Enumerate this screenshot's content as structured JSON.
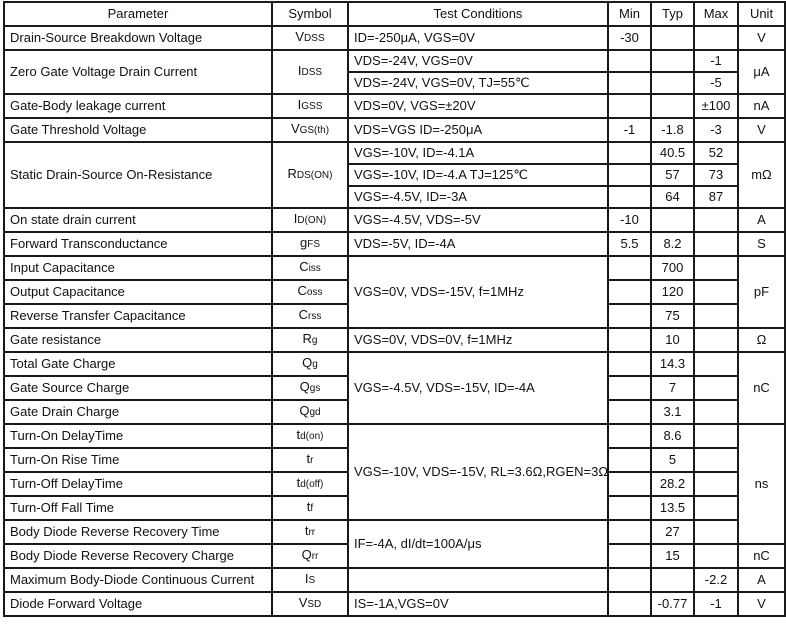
{
  "headers": [
    "Parameter",
    "Symbol",
    "Test Conditions",
    "Min",
    "Typ",
    "Max",
    "Unit"
  ],
  "rows": [
    {
      "param": "Drain-Source Breakdown Voltage",
      "symbol": {
        "base": "V",
        "sub": "DSS"
      },
      "cond": "ID=-250μA, VGS=0V",
      "min": "-30",
      "typ": "",
      "max": "",
      "unit": "V"
    },
    {
      "param": "Zero Gate Voltage Drain Current",
      "param_span": 2,
      "symbol": {
        "base": "I",
        "sub": "DSS"
      },
      "cond": "VDS=-24V, VGS=0V",
      "min": "",
      "typ": "",
      "max": "-1",
      "unit": "μA",
      "unit_span": 2
    },
    {
      "cond": "VDS=-24V, VGS=0V, TJ=55℃",
      "min": "",
      "typ": "",
      "max": "-5"
    },
    {
      "param": "Gate-Body leakage current",
      "symbol": {
        "base": "I",
        "sub": "GSS"
      },
      "cond": "VDS=0V, VGS=±20V",
      "min": "",
      "typ": "",
      "max": "±100",
      "unit": "nA"
    },
    {
      "param": "Gate Threshold Voltage",
      "symbol": {
        "base": "V",
        "sub": "GS(th)"
      },
      "cond": "VDS=VGS ID=-250μA",
      "min": "-1",
      "typ": "-1.8",
      "max": "-3",
      "unit": "V"
    },
    {
      "param": "Static Drain-Source On-Resistance",
      "param_span": 3,
      "symbol": {
        "base": "R",
        "sub": "DS(ON)"
      },
      "cond": "VGS=-10V, ID=-4.1A",
      "min": "",
      "typ": "40.5",
      "max": "52",
      "unit": "mΩ",
      "unit_span": 3
    },
    {
      "cond": "VGS=-10V, ID=-4.A   TJ=125℃",
      "min": "",
      "typ": "57",
      "max": "73"
    },
    {
      "cond": "VGS=-4.5V, ID=-3A",
      "min": "",
      "typ": "64",
      "max": "87"
    },
    {
      "param": "On state drain current",
      "symbol": {
        "base": "I",
        "sub": "D(ON)"
      },
      "cond": "VGS=-4.5V, VDS=-5V",
      "min": "-10",
      "typ": "",
      "max": "",
      "unit": "A"
    },
    {
      "param": "Forward Transconductance",
      "symbol": {
        "base": "g",
        "sub": "FS"
      },
      "cond": "VDS=-5V, ID=-4A",
      "min": "5.5",
      "typ": "8.2",
      "max": "",
      "unit": "S"
    },
    {
      "param": "Input Capacitance",
      "symbol": {
        "base": "C",
        "sub": "iss"
      },
      "cond": "VGS=0V, VDS=-15V, f=1MHz",
      "cond_span": 3,
      "min": "",
      "typ": "700",
      "max": "",
      "unit": "pF",
      "unit_span": 3
    },
    {
      "param": "Output Capacitance",
      "symbol": {
        "base": "C",
        "sub": "oss"
      },
      "min": "",
      "typ": "120",
      "max": ""
    },
    {
      "param": "Reverse Transfer Capacitance",
      "symbol": {
        "base": "C",
        "sub": "rss"
      },
      "min": "",
      "typ": "75",
      "max": ""
    },
    {
      "param": "Gate resistance",
      "symbol": {
        "base": "R",
        "sub": "g"
      },
      "cond": "VGS=0V, VDS=0V, f=1MHz",
      "min": "",
      "typ": "10",
      "max": "",
      "unit": "Ω"
    },
    {
      "param": "Total Gate Charge",
      "symbol": {
        "base": "Q",
        "sub": "g"
      },
      "cond": "VGS=-4.5V, VDS=-15V, ID=-4A",
      "cond_span": 3,
      "min": "",
      "typ": "14.3",
      "max": "",
      "unit": "nC",
      "unit_span": 3
    },
    {
      "param": "Gate Source Charge",
      "symbol": {
        "base": "Q",
        "sub": "gs"
      },
      "min": "",
      "typ": "7",
      "max": ""
    },
    {
      "param": "Gate Drain Charge",
      "symbol": {
        "base": "Q",
        "sub": "gd"
      },
      "min": "",
      "typ": "3.1",
      "max": ""
    },
    {
      "param": "Turn-On DelayTime",
      "symbol": {
        "base": "t",
        "sub": "d(on)"
      },
      "cond": "VGS=-10V, VDS=-15V, RL=3.6Ω,RGEN=3Ω",
      "cond_span": 4,
      "min": "",
      "typ": "8.6",
      "max": "",
      "unit": "ns",
      "unit_span": 5
    },
    {
      "param": "Turn-On Rise Time",
      "symbol": {
        "base": "t",
        "sub": "r"
      },
      "min": "",
      "typ": "5",
      "max": ""
    },
    {
      "param": "Turn-Off DelayTime",
      "symbol": {
        "base": "t",
        "sub": "d(off)"
      },
      "min": "",
      "typ": "28.2",
      "max": ""
    },
    {
      "param": "Turn-Off Fall Time",
      "symbol": {
        "base": "t",
        "sub": "f"
      },
      "min": "",
      "typ": "13.5",
      "max": ""
    },
    {
      "param": "Body Diode Reverse Recovery Time",
      "symbol": {
        "base": "t",
        "sub": "rr"
      },
      "cond": "IF=-4A, dI/dt=100A/μs",
      "cond_span": 2,
      "min": "",
      "typ": "27",
      "max": ""
    },
    {
      "param": "Body Diode Reverse Recovery Charge",
      "symbol": {
        "base": "Q",
        "sub": "rr"
      },
      "min": "",
      "typ": "15",
      "max": "",
      "unit": "nC"
    },
    {
      "param": "Maximum Body-Diode Continuous Current",
      "symbol": {
        "base": "I",
        "sub": "S"
      },
      "cond": "",
      "min": "",
      "typ": "",
      "max": "-2.2",
      "unit": "A"
    },
    {
      "param": "Diode Forward Voltage",
      "symbol": {
        "base": "V",
        "sub": "SD"
      },
      "cond": "IS=-1A,VGS=0V",
      "min": "",
      "typ": "-0.77",
      "max": "-1",
      "unit": "V"
    }
  ]
}
